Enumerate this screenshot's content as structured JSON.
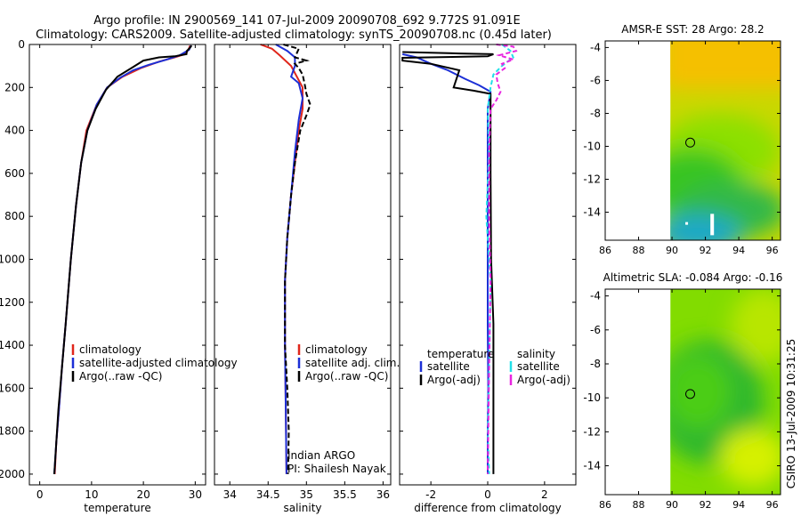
{
  "figure": {
    "title_line1": "Argo profile: IN 2900569_141 07-Jul-2009 20090708_692 9.772S 91.091E",
    "title_line2": "Climatology: CARS2009. Satellite-adjusted climatology: synTS_20090708.nc (0.45d later)",
    "side_label": "CSIRO 13-Jul-2009 10:31:25",
    "colors": {
      "climatology": "#e0261b",
      "satellite": "#1c2fd6",
      "argo": "#000000",
      "satellite_sal": "#22e0e8",
      "argo_adj": "#e825e0"
    }
  },
  "chart_data": [
    {
      "id": "temperature",
      "type": "line",
      "xlabel": "temperature",
      "ylabel": "",
      "xlim": [
        -2,
        32
      ],
      "ylim": [
        2050,
        0
      ],
      "xticks": [
        "0",
        "10",
        "20",
        "30"
      ],
      "yticks": [
        "0",
        "200",
        "400",
        "600",
        "800",
        "1000",
        "1200",
        "1400",
        "1600",
        "1800",
        "2000"
      ],
      "legend": [
        "climatology",
        "satellite-adjusted climatology",
        "Argo(..raw -QC)"
      ],
      "series": [
        {
          "name": "climatology",
          "color": "#e0261b",
          "points": [
            [
              29,
              5
            ],
            [
              28.7,
              25
            ],
            [
              28,
              45
            ],
            [
              26,
              60
            ],
            [
              23,
              80
            ],
            [
              19.5,
              110
            ],
            [
              16,
              150
            ],
            [
              13,
              200
            ],
            [
              11,
              280
            ],
            [
              9,
              400
            ],
            [
              8,
              550
            ],
            [
              7,
              750
            ],
            [
              6,
              1000
            ],
            [
              5,
              1300
            ],
            [
              4.3,
              1500
            ],
            [
              3.7,
              1700
            ],
            [
              3.2,
              1850
            ],
            [
              2.9,
              2000
            ]
          ]
        },
        {
          "name": "satellite-adjusted climatology",
          "color": "#1c2fd6",
          "points": [
            [
              29.2,
              5
            ],
            [
              28.8,
              25
            ],
            [
              27,
              50
            ],
            [
              24.5,
              70
            ],
            [
              21,
              95
            ],
            [
              18,
              120
            ],
            [
              15.5,
              155
            ],
            [
              13,
              200
            ],
            [
              11,
              280
            ],
            [
              9.2,
              400
            ],
            [
              8,
              550
            ],
            [
              7,
              750
            ],
            [
              6,
              1000
            ],
            [
              5,
              1300
            ],
            [
              4.3,
              1500
            ],
            [
              3.7,
              1700
            ],
            [
              3.2,
              1850
            ],
            [
              2.8,
              2000
            ]
          ]
        },
        {
          "name": "Argo(..raw -QC)",
          "color": "#000000",
          "points": [
            [
              29.3,
              5
            ],
            [
              29,
              15
            ],
            [
              28.4,
              30
            ],
            [
              28.3,
              45
            ],
            [
              26,
              55
            ],
            [
              23,
              60
            ],
            [
              20,
              75
            ],
            [
              18,
              105
            ],
            [
              15,
              150
            ],
            [
              12.8,
              210
            ],
            [
              10.8,
              300
            ],
            [
              9.2,
              400
            ],
            [
              8,
              550
            ],
            [
              7,
              750
            ],
            [
              6,
              1000
            ],
            [
              5,
              1300
            ],
            [
              4.3,
              1500
            ],
            [
              3.6,
              1700
            ],
            [
              3.2,
              1850
            ],
            [
              2.8,
              2000
            ]
          ]
        }
      ]
    },
    {
      "id": "salinity",
      "type": "line",
      "xlabel": "salinity",
      "ylabel": "",
      "xlim": [
        33.8,
        36.1
      ],
      "ylim": [
        2050,
        0
      ],
      "xticks": [
        "34",
        "34.5",
        "35",
        "35.5",
        "36"
      ],
      "yticks": [
        "0",
        "200",
        "400",
        "600",
        "800",
        "1000",
        "1200",
        "1400",
        "1600",
        "1800",
        "2000"
      ],
      "legend": [
        "climatology",
        "satellite adj. clim.",
        "Argo(..raw -QC)"
      ],
      "annotations": [
        "Indian ARGO",
        "PI: Shailesh Nayak"
      ],
      "series": [
        {
          "name": "climatology",
          "color": "#e0261b",
          "points": [
            [
              34.4,
              0
            ],
            [
              34.55,
              20
            ],
            [
              34.65,
              50
            ],
            [
              34.8,
              100
            ],
            [
              34.95,
              200
            ],
            [
              34.95,
              300
            ],
            [
              34.9,
              400
            ],
            [
              34.85,
              550
            ],
            [
              34.8,
              700
            ],
            [
              34.75,
              900
            ],
            [
              34.72,
              1100
            ],
            [
              34.72,
              1400
            ],
            [
              34.73,
              1700
            ],
            [
              34.74,
              2000
            ]
          ]
        },
        {
          "name": "satellite adj. clim.",
          "color": "#1c2fd6",
          "points": [
            [
              34.6,
              0
            ],
            [
              34.75,
              30
            ],
            [
              34.85,
              60
            ],
            [
              34.85,
              100
            ],
            [
              34.8,
              150
            ],
            [
              34.9,
              180
            ],
            [
              34.95,
              250
            ],
            [
              34.9,
              350
            ],
            [
              34.85,
              500
            ],
            [
              34.8,
              700
            ],
            [
              34.75,
              900
            ],
            [
              34.72,
              1100
            ],
            [
              34.72,
              1400
            ],
            [
              34.73,
              1700
            ],
            [
              34.74,
              2000
            ]
          ]
        },
        {
          "name": "Argo(..raw -QC)",
          "color": "#000000",
          "points": [
            [
              34.7,
              0
            ],
            [
              34.9,
              20
            ],
            [
              34.85,
              60
            ],
            [
              35.0,
              75
            ],
            [
              34.85,
              90
            ],
            [
              34.9,
              110
            ],
            [
              34.95,
              140
            ],
            [
              34.98,
              190
            ],
            [
              35.0,
              230
            ],
            [
              35.05,
              280
            ],
            [
              35.0,
              330
            ],
            [
              34.92,
              400
            ],
            [
              34.85,
              550
            ],
            [
              34.8,
              700
            ],
            [
              34.75,
              900
            ],
            [
              34.72,
              1100
            ],
            [
              34.72,
              1400
            ],
            [
              34.75,
              1600
            ],
            [
              34.77,
              1800
            ],
            [
              34.76,
              2000
            ]
          ]
        }
      ]
    },
    {
      "id": "difference",
      "type": "line",
      "xlabel": "difference from climatology",
      "ylabel": "",
      "xlim": [
        -3.1,
        3.1
      ],
      "ylim": [
        2050,
        0
      ],
      "xticks": [
        "-2",
        "0",
        "2"
      ],
      "yticks": [
        "0",
        "200",
        "400",
        "600",
        "800",
        "1000",
        "1200",
        "1400",
        "1600",
        "1800",
        "2000"
      ],
      "legend_titles": [
        "temperature",
        "salinity"
      ],
      "legend": [
        "satellite",
        "Argo(-adj)",
        "satellite",
        "Argo(-adj)"
      ],
      "series": [
        {
          "name": "temperature satellite",
          "color": "#1c2fd6",
          "points": [
            [
              -3,
              45
            ],
            [
              -2.5,
              60
            ],
            [
              -2,
              90
            ],
            [
              -1.4,
              120
            ],
            [
              -0.8,
              160
            ],
            [
              -0.3,
              190
            ],
            [
              0.1,
              220
            ],
            [
              0,
              300
            ],
            [
              0,
              400
            ],
            [
              0,
              600
            ],
            [
              0,
              800
            ],
            [
              0,
              1000
            ],
            [
              0,
              1300
            ],
            [
              0.02,
              1600
            ],
            [
              0,
              1800
            ],
            [
              0,
              2000
            ]
          ]
        },
        {
          "name": "temperature Argo(-adj)",
          "color": "#000000",
          "points": [
            [
              -3,
              35
            ],
            [
              -1,
              42
            ],
            [
              0.2,
              45
            ],
            [
              0,
              55
            ],
            [
              -3,
              62
            ],
            [
              -3,
              75
            ],
            [
              -2,
              90
            ],
            [
              -1,
              120
            ],
            [
              -1.2,
              200
            ],
            [
              -0.5,
              215
            ],
            [
              0.1,
              230
            ],
            [
              0.1,
              400
            ],
            [
              0.1,
              600
            ],
            [
              0.12,
              1000
            ],
            [
              0.2,
              1300
            ],
            [
              0.2,
              1500
            ],
            [
              0.2,
              1800
            ],
            [
              0.2,
              2000
            ]
          ]
        },
        {
          "name": "salinity satellite",
          "color": "#22e0e8",
          "points": [
            [
              0.5,
              0
            ],
            [
              0.8,
              30
            ],
            [
              0.9,
              60
            ],
            [
              0.5,
              100
            ],
            [
              0.2,
              140
            ],
            [
              0.1,
              200
            ],
            [
              0,
              300
            ],
            [
              0.05,
              500
            ],
            [
              -0.05,
              800
            ],
            [
              0.1,
              1100
            ],
            [
              0.05,
              1500
            ],
            [
              0,
              1800
            ],
            [
              0.05,
              2000
            ]
          ]
        },
        {
          "name": "salinity Argo(-adj)",
          "color": "#e825e0",
          "points": [
            [
              0.3,
              0
            ],
            [
              0.9,
              10
            ],
            [
              1.0,
              30
            ],
            [
              0.4,
              50
            ],
            [
              0.9,
              70
            ],
            [
              0.5,
              90
            ],
            [
              0.6,
              110
            ],
            [
              0.3,
              140
            ],
            [
              0.35,
              180
            ],
            [
              0.45,
              220
            ],
            [
              0.3,
              260
            ],
            [
              0.1,
              300
            ],
            [
              0.05,
              500
            ],
            [
              0.05,
              800
            ],
            [
              0.1,
              1100
            ],
            [
              0.05,
              1500
            ],
            [
              0.02,
              1800
            ],
            [
              0,
              2000
            ]
          ]
        }
      ]
    },
    {
      "id": "sst_map",
      "type": "heatmap",
      "title": "AMSR-E SST: 28 Argo: 28.2",
      "xlim": [
        86,
        96.5
      ],
      "ylim": [
        -15.7,
        -3.6
      ],
      "xticks": [
        "86",
        "88",
        "90",
        "92",
        "94",
        "96"
      ],
      "yticks": [
        "-4",
        "-6",
        "-8",
        "-10",
        "-12",
        "-14"
      ],
      "data_xmin": 89.9,
      "marker": [
        91.091,
        -9.772
      ],
      "colors": [
        "#f5c000",
        "#c8d800",
        "#8ce000",
        "#38c520",
        "#30b848",
        "#1fa8c8"
      ]
    },
    {
      "id": "sla_map",
      "type": "heatmap",
      "title": "Altimetric SLA: -0.084 Argo: -0.16",
      "xlim": [
        86,
        96.5
      ],
      "ylim": [
        -15.7,
        -3.6
      ],
      "xticks": [
        "86",
        "88",
        "90",
        "92",
        "94",
        "96"
      ],
      "yticks": [
        "-4",
        "-6",
        "-8",
        "-10",
        "-12",
        "-14"
      ],
      "data_xmin": 89.9,
      "marker": [
        91.091,
        -9.772
      ],
      "colors": [
        "#b8e600",
        "#82dc00",
        "#4ccd12",
        "#2fb82e",
        "#d6f000"
      ]
    }
  ]
}
